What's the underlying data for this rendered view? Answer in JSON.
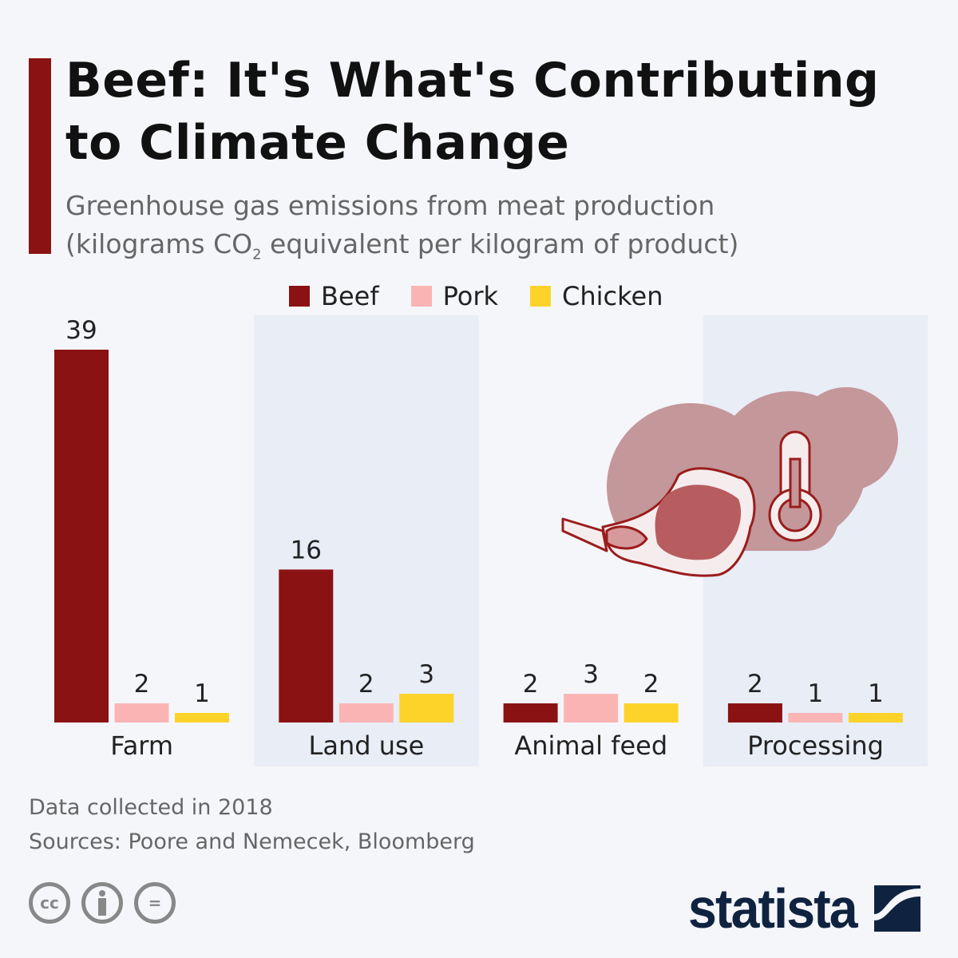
{
  "title": "Beef: It's What's Contributing to Climate Change",
  "subtitle_line1": "Greenhouse gas emissions from meat production",
  "subtitle_line2_pre": "(kilograms CO",
  "subtitle_line2_sub": "2",
  "subtitle_line2_post": " equivalent per kilogram of product)",
  "chart_data": {
    "type": "bar",
    "categories": [
      "Farm",
      "Land use",
      "Animal feed",
      "Processing"
    ],
    "series": [
      {
        "name": "Beef",
        "color": "#8b1212",
        "values": [
          39,
          16,
          2,
          2
        ]
      },
      {
        "name": "Pork",
        "color": "#fbb4b4",
        "values": [
          2,
          2,
          3,
          1
        ]
      },
      {
        "name": "Chicken",
        "color": "#fdd32a",
        "values": [
          1,
          3,
          2,
          1
        ]
      }
    ],
    "ylim": [
      0,
      39
    ],
    "grid": false,
    "legend_position": "top-center",
    "band_color": "#e8edf6"
  },
  "notes": {
    "data_collected": "Data collected in 2018",
    "sources": "Sources: Poore and Nemecek, Bloomberg"
  },
  "license_icons": [
    "cc-icon",
    "attribution-icon",
    "no-derivatives-icon"
  ],
  "license_text": {
    "cc": "cc",
    "nd": "="
  },
  "brand": "statista",
  "illustration": [
    "steak-icon",
    "thermometer-icon",
    "cloud-icon"
  ]
}
